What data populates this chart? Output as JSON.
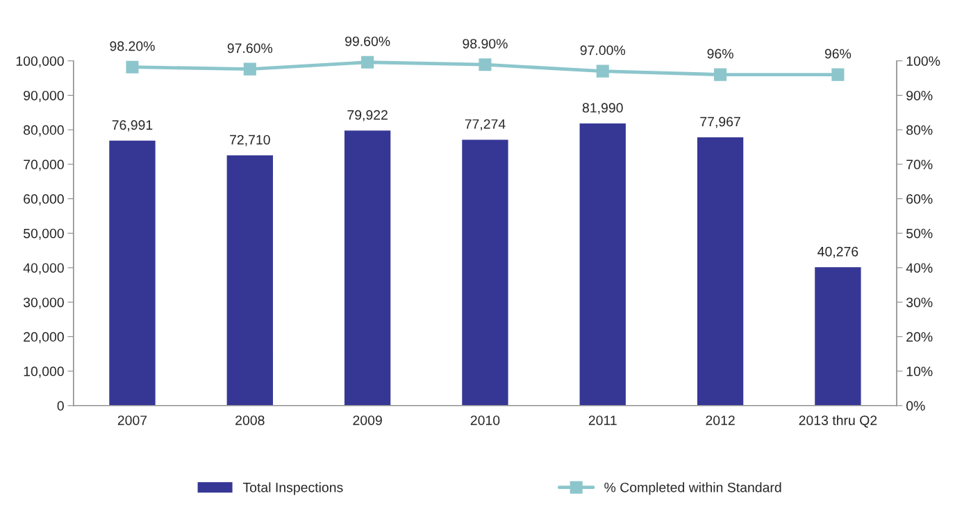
{
  "chart_data": {
    "type": "bar",
    "categories": [
      "2007",
      "2008",
      "2009",
      "2010",
      "2011",
      "2012",
      "2013 thru Q2"
    ],
    "series": [
      {
        "name": "Total Inspections",
        "color": "#363795",
        "values": [
          76991,
          72710,
          79922,
          77274,
          81990,
          77967,
          40276
        ],
        "value_labels": [
          "76,991",
          "72,710",
          "79,922",
          "77,274",
          "81,990",
          "77,967",
          "40,276"
        ]
      },
      {
        "name": "% Completed within Standard",
        "type": "line",
        "axis": "y2",
        "color": "#8cc6cc",
        "marker": "square",
        "values": [
          98.2,
          97.6,
          99.6,
          98.9,
          97.0,
          96,
          96
        ],
        "value_labels": [
          "98.20%",
          "97.60%",
          "99.60%",
          "98.90%",
          "97.00%",
          "96%",
          "96%"
        ]
      }
    ],
    "ylim": [
      0,
      100000
    ],
    "yticks": [
      0,
      {
        "value": 10000,
        "label": "10,000"
      },
      {
        "value": 20000,
        "label": "20,000"
      },
      {
        "value": 30000,
        "label": "30,000"
      },
      {
        "value": 40000,
        "label": "40,000"
      },
      {
        "value": 50000,
        "label": "50,000"
      },
      {
        "value": 60000,
        "label": "60,000"
      },
      {
        "value": 70000,
        "label": "70,000"
      },
      {
        "value": 80000,
        "label": "80,000"
      },
      {
        "value": 90000,
        "label": "90,000"
      },
      {
        "value": 100000,
        "label": "100,000"
      }
    ],
    "y2lim": [
      0,
      100
    ],
    "y2ticks": [
      {
        "value": 0,
        "label": "0%"
      },
      {
        "value": 10,
        "label": "10%"
      },
      {
        "value": 20,
        "label": "20%"
      },
      {
        "value": 30,
        "label": "30%"
      },
      {
        "value": 40,
        "label": "40%"
      },
      {
        "value": 50,
        "label": "50%"
      },
      {
        "value": 60,
        "label": "60%"
      },
      {
        "value": 70,
        "label": "70%"
      },
      {
        "value": 80,
        "label": "80%"
      },
      {
        "value": 90,
        "label": "90%"
      },
      {
        "value": 100,
        "label": "100%"
      }
    ],
    "legend": "bottom",
    "grid": false
  }
}
